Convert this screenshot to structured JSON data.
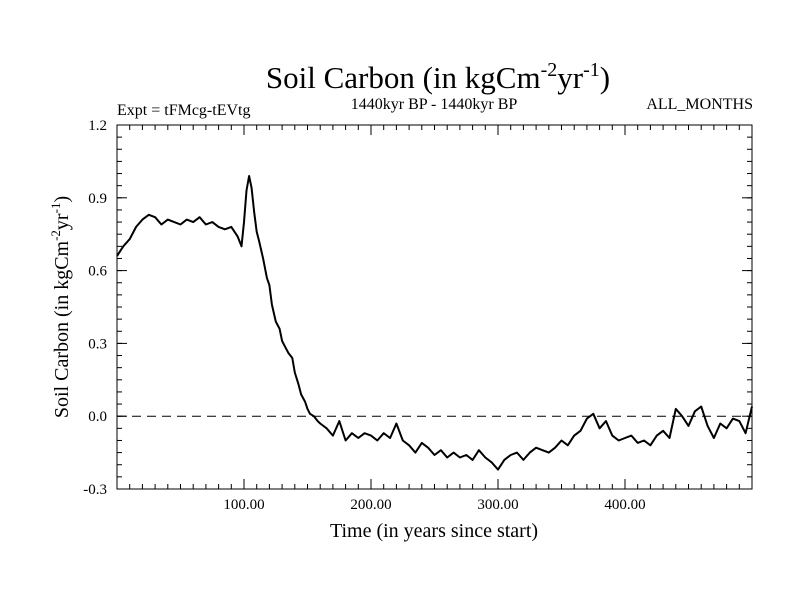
{
  "chart_data": {
    "type": "line",
    "title": {
      "main": "Soil Carbon (in kgCm",
      "sup1": "-2",
      "mid": "yr",
      "sup2": "-1",
      "end": ")"
    },
    "subtitle_left": "Expt = tFMcg-tEVtg",
    "subtitle_center": "1440kyr BP - 1440kyr BP",
    "subtitle_right": "ALL_MONTHS",
    "xlabel": "Time (in years since start)",
    "ylabel": {
      "main": "Soil Carbon (in kgCm",
      "sup1": "-2",
      "mid": "yr",
      "sup2": "-1",
      "end": ")"
    },
    "xlim": [
      0,
      500
    ],
    "ylim": [
      -0.3,
      1.2
    ],
    "x_ticks": [
      100,
      200,
      300,
      400
    ],
    "x_tick_labels": [
      "100.00",
      "200.00",
      "300.00",
      "400.00"
    ],
    "x_minor_step": 10,
    "y_ticks": [
      -0.3,
      0.0,
      0.3,
      0.6,
      0.9,
      1.2
    ],
    "y_tick_labels": [
      "-0.3",
      "0.0",
      "0.3",
      "0.6",
      "0.9",
      "1.2"
    ],
    "y_minor_step": 0.05,
    "reference_line": 0.0,
    "series": [
      {
        "name": "Soil Carbon",
        "x": [
          0,
          5,
          10,
          15,
          20,
          25,
          30,
          35,
          40,
          45,
          50,
          55,
          60,
          65,
          70,
          75,
          80,
          85,
          90,
          95,
          98,
          100,
          102,
          104,
          106,
          108,
          110,
          112,
          115,
          118,
          120,
          122,
          125,
          128,
          130,
          133,
          135,
          138,
          140,
          143,
          145,
          148,
          150,
          152,
          155,
          158,
          160,
          165,
          170,
          175,
          180,
          185,
          190,
          195,
          200,
          205,
          210,
          215,
          220,
          225,
          230,
          235,
          240,
          245,
          250,
          255,
          260,
          265,
          270,
          275,
          280,
          285,
          290,
          295,
          300,
          305,
          310,
          315,
          320,
          325,
          330,
          335,
          340,
          345,
          350,
          355,
          360,
          365,
          370,
          375,
          380,
          385,
          390,
          395,
          400,
          405,
          410,
          415,
          420,
          425,
          430,
          435,
          440,
          445,
          450,
          455,
          460,
          465,
          470,
          475,
          480,
          485,
          490,
          495,
          500
        ],
        "values": [
          0.66,
          0.7,
          0.73,
          0.78,
          0.81,
          0.83,
          0.82,
          0.79,
          0.81,
          0.8,
          0.79,
          0.81,
          0.8,
          0.82,
          0.79,
          0.8,
          0.78,
          0.77,
          0.78,
          0.74,
          0.7,
          0.8,
          0.93,
          0.99,
          0.94,
          0.84,
          0.76,
          0.72,
          0.65,
          0.57,
          0.54,
          0.46,
          0.39,
          0.36,
          0.31,
          0.28,
          0.26,
          0.24,
          0.18,
          0.13,
          0.09,
          0.06,
          0.03,
          0.01,
          0.0,
          -0.02,
          -0.03,
          -0.05,
          -0.08,
          -0.02,
          -0.1,
          -0.07,
          -0.09,
          -0.07,
          -0.08,
          -0.1,
          -0.07,
          -0.09,
          -0.03,
          -0.1,
          -0.12,
          -0.15,
          -0.11,
          -0.13,
          -0.16,
          -0.14,
          -0.17,
          -0.15,
          -0.17,
          -0.16,
          -0.18,
          -0.14,
          -0.17,
          -0.19,
          -0.22,
          -0.18,
          -0.16,
          -0.15,
          -0.18,
          -0.15,
          -0.13,
          -0.14,
          -0.15,
          -0.13,
          -0.1,
          -0.12,
          -0.08,
          -0.06,
          -0.01,
          0.01,
          -0.05,
          -0.02,
          -0.08,
          -0.1,
          -0.09,
          -0.08,
          -0.11,
          -0.1,
          -0.12,
          -0.08,
          -0.06,
          -0.09,
          0.03,
          0.0,
          -0.04,
          0.02,
          0.04,
          -0.04,
          -0.09,
          -0.03,
          -0.05,
          -0.01,
          -0.02,
          -0.07,
          0.04
        ]
      }
    ]
  }
}
